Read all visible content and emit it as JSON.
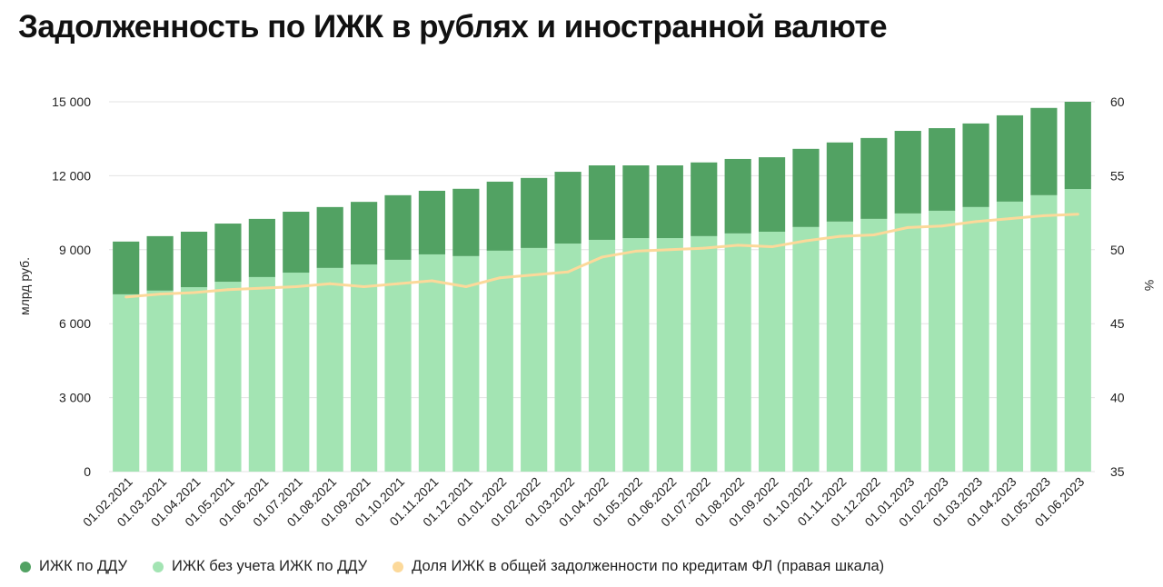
{
  "chart_data": {
    "type": "bar",
    "stacked": true,
    "title": "Задолженность по ИЖК в рублях и иностранной валюте",
    "ylabel": "млрд руб.",
    "y2label": "%",
    "ylim": [
      0,
      15000
    ],
    "y2lim": [
      35,
      60
    ],
    "yticks": [
      "0",
      "3 000",
      "6 000",
      "9 000",
      "12 000",
      "15 000"
    ],
    "y2ticks": [
      "35",
      "40",
      "45",
      "50",
      "55",
      "60"
    ],
    "grid": true,
    "legend_position": "bottom",
    "categories": [
      "01.02.2021",
      "01.03.2021",
      "01.04.2021",
      "01.05.2021",
      "01.06.2021",
      "01.07.2021",
      "01.08.2021",
      "01.09.2021",
      "01.10.2021",
      "01.11.2021",
      "01.12.2021",
      "01.01.2022",
      "01.02.2022",
      "01.03.2022",
      "01.04.2022",
      "01.05.2022",
      "01.06.2022",
      "01.07.2022",
      "01.08.2022",
      "01.09.2022",
      "01.10.2022",
      "01.11.2022",
      "01.12.2022",
      "01.01.2023",
      "01.02.2023",
      "01.03.2023",
      "01.04.2023",
      "01.05.2023",
      "01.06.2023"
    ],
    "series": [
      {
        "name": "ИЖК без учета ИЖК по ДДУ",
        "type": "bar",
        "axis": "left",
        "color": "#a3e4b3",
        "values": [
          7190,
          7340,
          7480,
          7700,
          7890,
          8070,
          8260,
          8400,
          8590,
          8810,
          8740,
          8960,
          9070,
          9250,
          9400,
          9470,
          9470,
          9550,
          9660,
          9730,
          9920,
          10140,
          10250,
          10470,
          10580,
          10730,
          10950,
          11210,
          11460
        ]
      },
      {
        "name": "ИЖК по ДДУ",
        "type": "bar",
        "axis": "left",
        "color": "#52a263",
        "values": [
          2140,
          2210,
          2250,
          2360,
          2360,
          2470,
          2470,
          2540,
          2620,
          2580,
          2730,
          2800,
          2840,
          2910,
          3020,
          2950,
          2950,
          2990,
          3020,
          3020,
          3170,
          3210,
          3280,
          3350,
          3350,
          3390,
          3500,
          3540,
          3540
        ]
      },
      {
        "name": "Доля ИЖК в общей задолженности по кредитам ФЛ (правая шкала)",
        "type": "line",
        "axis": "right",
        "color": "#fcd99a",
        "values": [
          46.8,
          47.0,
          47.1,
          47.3,
          47.4,
          47.5,
          47.7,
          47.5,
          47.7,
          47.9,
          47.5,
          48.1,
          48.3,
          48.5,
          49.5,
          49.9,
          50.0,
          50.1,
          50.3,
          50.2,
          50.6,
          50.9,
          51.0,
          51.5,
          51.6,
          51.9,
          52.1,
          52.3,
          52.4
        ]
      }
    ],
    "legend": [
      "ИЖК по ДДУ",
      "ИЖК без учета ИЖК по ДДУ",
      "Доля ИЖК в общей задолженности по кредитам ФЛ (правая шкала)"
    ]
  }
}
